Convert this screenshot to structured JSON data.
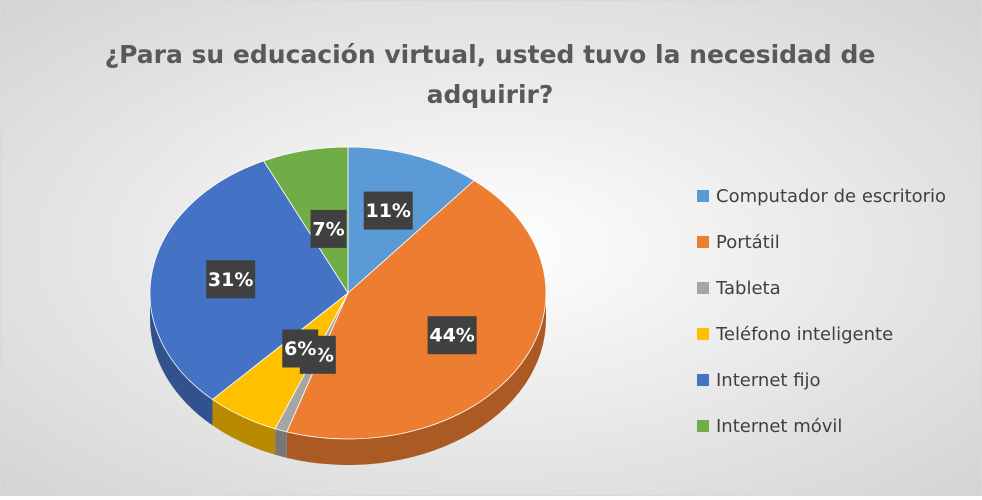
{
  "chart_data": {
    "type": "pie",
    "title": [
      "¿Para su educación virtual, usted tuvo la necesidad de",
      "adquirir?"
    ],
    "categories": [
      "Computador de escritorio",
      "Portátil",
      "Tableta",
      "Teléfono inteligente",
      "Internet fijo",
      "Internet móvil"
    ],
    "values": [
      11,
      44,
      1,
      6,
      31,
      7
    ],
    "value_labels": [
      "11%",
      "44%",
      "1%",
      "6%",
      "31%",
      "7%"
    ],
    "colors": [
      "#5b9bd5",
      "#ed7d31",
      "#a5a5a5",
      "#ffc000",
      "#4472c4",
      "#70ad47"
    ],
    "legend": "right"
  }
}
